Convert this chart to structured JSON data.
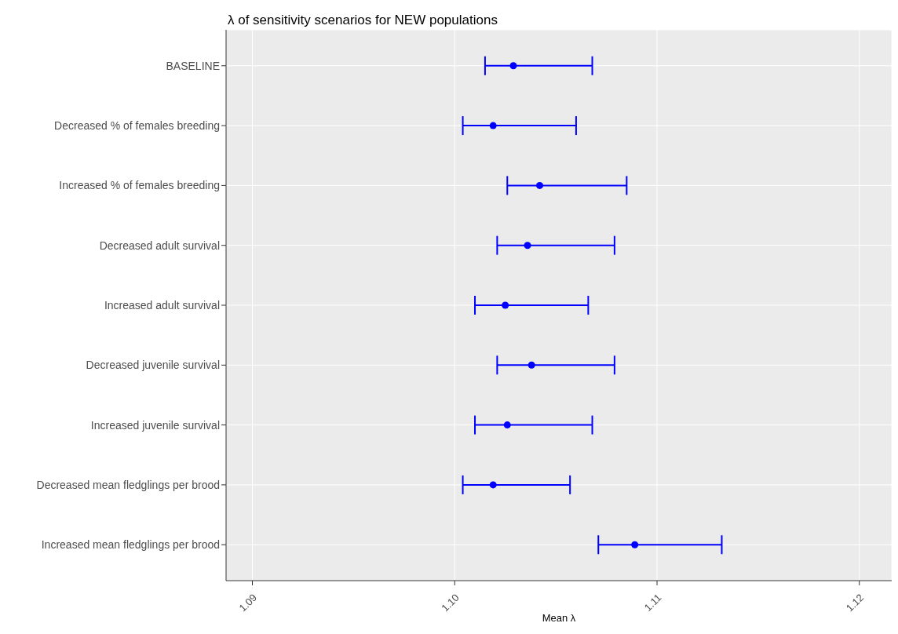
{
  "chart_data": {
    "type": "scatter",
    "title": "λ of sensitivity scenarios for NEW populations",
    "xlabel": "Mean λ",
    "categories": [
      "BASELINE",
      "Decreased % of females breeding",
      "Increased % of females breeding",
      "Decreased adult survival",
      "Increased adult survival",
      "Decreased juvenile survival",
      "Increased juvenile survival",
      "Decreased mean fledglings per brood",
      "Increased mean fledglings per brood"
    ],
    "orientation": "horizontal",
    "color": "#0000ff",
    "marker": "circle",
    "grid": true,
    "values": [
      1.1029,
      1.1019,
      1.1042,
      1.1036,
      1.1025,
      1.1038,
      1.1026,
      1.1019,
      1.1089
    ],
    "errors": [
      [
        1.1015,
        1.1068
      ],
      [
        1.1004,
        1.106
      ],
      [
        1.1026,
        1.1085
      ],
      [
        1.1021,
        1.1079
      ],
      [
        1.101,
        1.1066
      ],
      [
        1.1021,
        1.1079
      ],
      [
        1.101,
        1.1068
      ],
      [
        1.1004,
        1.1057
      ],
      [
        1.1071,
        1.1132
      ]
    ],
    "xlim": [
      1.0887,
      1.1216
    ],
    "xticks": [
      {
        "value": 1.09,
        "label": "1.09"
      },
      {
        "value": 1.1,
        "label": "1.10"
      },
      {
        "value": 1.11,
        "label": "1.11"
      },
      {
        "value": 1.12,
        "label": "1.12"
      }
    ]
  }
}
